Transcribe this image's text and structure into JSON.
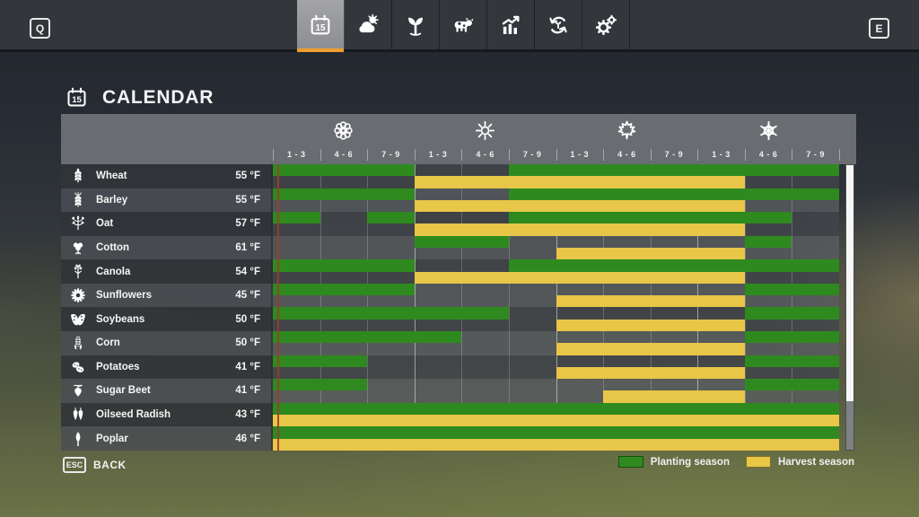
{
  "topbar": {
    "left_key": "Q",
    "right_key": "E",
    "calendar_day": "15",
    "tabs": [
      {
        "label": "calendar",
        "icon": "calendar-icon",
        "selected": true
      },
      {
        "label": "weather",
        "icon": "weather-icon",
        "selected": false
      },
      {
        "label": "crops",
        "icon": "seedling-icon",
        "selected": false
      },
      {
        "label": "animals",
        "icon": "cow-icon",
        "selected": false
      },
      {
        "label": "economy",
        "icon": "chart-icon",
        "selected": false
      },
      {
        "label": "crop-rotation",
        "icon": "rotation-icon",
        "selected": false
      },
      {
        "label": "settings",
        "icon": "gear-icon",
        "selected": false
      }
    ]
  },
  "page": {
    "title": "CALENDAR"
  },
  "calendar": {
    "seasons": [
      {
        "name": "spring",
        "icon": "flower-icon"
      },
      {
        "name": "summer",
        "icon": "sun-icon"
      },
      {
        "name": "autumn",
        "icon": "leaf-icon"
      },
      {
        "name": "winter",
        "icon": "snowflake-icon"
      }
    ],
    "period_labels": [
      "1 - 3",
      "4 - 6",
      "7 - 9"
    ],
    "columns_total": 12,
    "current_day_column": 1,
    "crops": [
      {
        "name": "Wheat",
        "temp": "55 °F",
        "icon": "wheat-icon",
        "planting": [
          [
            1,
            3
          ],
          [
            6,
            12
          ]
        ],
        "harvest": [
          [
            4,
            10
          ]
        ]
      },
      {
        "name": "Barley",
        "temp": "55 °F",
        "icon": "barley-icon",
        "planting": [
          [
            1,
            3
          ],
          [
            6,
            12
          ]
        ],
        "harvest": [
          [
            4,
            10
          ]
        ]
      },
      {
        "name": "Oat",
        "temp": "57 °F",
        "icon": "oat-icon",
        "planting": [
          [
            1,
            1
          ],
          [
            3,
            3
          ],
          [
            6,
            11
          ]
        ],
        "harvest": [
          [
            4,
            10
          ]
        ]
      },
      {
        "name": "Cotton",
        "temp": "61 °F",
        "icon": "cotton-icon",
        "planting": [
          [
            4,
            5
          ],
          [
            11,
            11
          ]
        ],
        "harvest": [
          [
            7,
            10
          ]
        ]
      },
      {
        "name": "Canola",
        "temp": "54 °F",
        "icon": "canola-icon",
        "planting": [
          [
            1,
            3
          ],
          [
            6,
            12
          ]
        ],
        "harvest": [
          [
            4,
            10
          ]
        ]
      },
      {
        "name": "Sunflowers",
        "temp": "45 °F",
        "icon": "sunflower-icon",
        "planting": [
          [
            1,
            3
          ],
          [
            11,
            12
          ]
        ],
        "harvest": [
          [
            7,
            10
          ]
        ]
      },
      {
        "name": "Soybeans",
        "temp": "50 °F",
        "icon": "soybean-icon",
        "planting": [
          [
            1,
            5
          ],
          [
            11,
            12
          ]
        ],
        "harvest": [
          [
            7,
            10
          ]
        ]
      },
      {
        "name": "Corn",
        "temp": "50 °F",
        "icon": "corn-icon",
        "planting": [
          [
            1,
            4
          ],
          [
            11,
            12
          ]
        ],
        "harvest": [
          [
            7,
            10
          ]
        ]
      },
      {
        "name": "Potatoes",
        "temp": "41 °F",
        "icon": "potato-icon",
        "planting": [
          [
            1,
            2
          ],
          [
            11,
            12
          ]
        ],
        "harvest": [
          [
            7,
            10
          ]
        ]
      },
      {
        "name": "Sugar Beet",
        "temp": "41 °F",
        "icon": "sugarbeet-icon",
        "planting": [
          [
            1,
            2
          ],
          [
            11,
            12
          ]
        ],
        "harvest": [
          [
            8,
            10
          ]
        ]
      },
      {
        "name": "Oilseed Radish",
        "temp": "43 °F",
        "icon": "radish-icon",
        "planting": [
          [
            1,
            12
          ]
        ],
        "harvest": [
          [
            1,
            12
          ]
        ]
      },
      {
        "name": "Poplar",
        "temp": "46 °F",
        "icon": "poplar-icon",
        "planting": [
          [
            1,
            12
          ]
        ],
        "harvest": [
          [
            1,
            12
          ]
        ]
      }
    ]
  },
  "legend": [
    {
      "label": "Planting season",
      "color": "#2e8a1f"
    },
    {
      "label": "Harvest season",
      "color": "#e8c647"
    }
  ],
  "footer": {
    "back_key": "ESC",
    "back_label": "BACK"
  },
  "colors": {
    "planting": "#2e8a1f",
    "harvest": "#e8c647",
    "accent": "#ef9f2f",
    "current_day": "#a23a28"
  }
}
